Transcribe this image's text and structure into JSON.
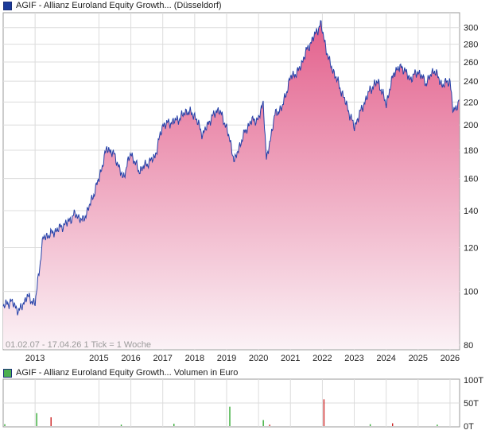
{
  "price_panel": {
    "legend": "AGIF - Allianz Euroland Equity Growth... (Düsseldorf)",
    "legend_color": "#1a3a9a",
    "range_note": "01.02.07 - 17.04.26",
    "tick_note": "1 Tick = 1 Woche",
    "line_color": "#2440a8",
    "fill_top_color": "#e3608c",
    "fill_bottom_color": "#fbf2f6"
  },
  "volume_panel": {
    "legend": "AGIF - Allianz Euroland Equity Growth... Volumen in Euro",
    "legend_color": "#4caf50",
    "up_color": "#33aa33",
    "down_color": "#cc2222"
  },
  "chart_data": [
    {
      "type": "area",
      "scale": "log",
      "title": "AGIF - Allianz Euroland Equity Growth... (Düsseldorf)",
      "x_ticks": [
        "2013",
        "2015",
        "2016",
        "2017",
        "2018",
        "2019",
        "2020",
        "2021",
        "2022",
        "2023",
        "2024",
        "2025",
        "2026"
      ],
      "y_ticks": [
        80,
        100,
        120,
        140,
        160,
        180,
        200,
        220,
        240,
        260,
        280,
        300
      ],
      "ylim": [
        80,
        315
      ],
      "xlim": [
        2012.0,
        2026.3
      ],
      "grid": true,
      "x": [
        2012.0,
        2012.25,
        2012.5,
        2012.75,
        2013.0,
        2013.25,
        2013.5,
        2013.75,
        2014.0,
        2014.25,
        2014.5,
        2014.75,
        2015.0,
        2015.25,
        2015.5,
        2015.75,
        2016.0,
        2016.25,
        2016.5,
        2016.75,
        2017.0,
        2017.25,
        2017.5,
        2017.75,
        2018.0,
        2018.25,
        2018.5,
        2018.75,
        2019.0,
        2019.25,
        2019.5,
        2019.75,
        2020.0,
        2020.15,
        2020.25,
        2020.5,
        2020.75,
        2021.0,
        2021.25,
        2021.5,
        2021.75,
        2021.95,
        2022.2,
        2022.5,
        2022.75,
        2023.0,
        2023.25,
        2023.5,
        2023.75,
        2024.0,
        2024.25,
        2024.5,
        2024.75,
        2025.0,
        2025.25,
        2025.5,
        2025.75,
        2026.0,
        2026.1,
        2026.29
      ],
      "values": [
        94,
        96,
        92,
        98,
        95,
        125,
        127,
        130,
        133,
        138,
        134,
        145,
        160,
        182,
        176,
        160,
        178,
        165,
        170,
        175,
        200,
        202,
        205,
        212,
        208,
        192,
        205,
        214,
        198,
        172,
        190,
        203,
        205,
        220,
        172,
        208,
        216,
        244,
        250,
        272,
        290,
        305,
        262,
        238,
        218,
        198,
        215,
        232,
        240,
        218,
        250,
        255,
        242,
        250,
        238,
        252,
        236,
        241,
        210,
        222
      ]
    },
    {
      "type": "bar",
      "title": "AGIF - Allianz Euroland Equity Growth... Volumen in Euro",
      "ylabel": "Volumen in Euro",
      "y_ticks": [
        "0T",
        "50T",
        "100T"
      ],
      "ylim": [
        0,
        100
      ],
      "x": [
        2012.05,
        2013.05,
        2013.5,
        2015.7,
        2017.35,
        2019.1,
        2020.15,
        2020.35,
        2022.05,
        2023.5,
        2024.2,
        2025.6
      ],
      "values": [
        4,
        28,
        19,
        3,
        5,
        42,
        13,
        3,
        58,
        4,
        6,
        3
      ],
      "direction": [
        "up",
        "up",
        "down",
        "up",
        "up",
        "up",
        "up",
        "down",
        "down",
        "up",
        "down",
        "up"
      ]
    }
  ]
}
